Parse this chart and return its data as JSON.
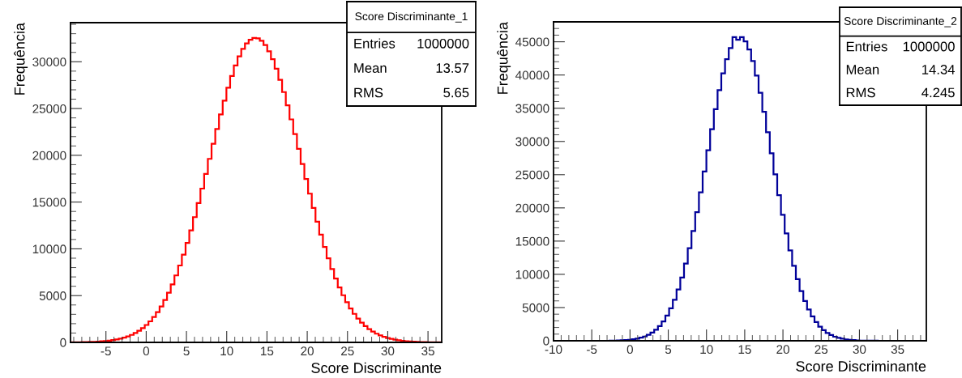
{
  "chart_data": [
    {
      "type": "histogram",
      "title": "Score Discriminante_1",
      "xlabel": "Score Discriminante",
      "ylabel": "Frequência",
      "color": "#ff0000",
      "annotations": [
        "Entries",
        "1000000",
        "Mean",
        "13.57",
        "RMS",
        "5.65"
      ],
      "bins": [
        -9.4,
        -8.939,
        -8.478,
        -8.017,
        -7.556,
        -7.095,
        -6.634,
        -6.173,
        -5.712,
        -5.251,
        -4.79,
        -4.329,
        -3.868,
        -3.407,
        -2.946,
        -2.485,
        -2.024,
        -1.563,
        -1.102,
        -0.641,
        -0.18,
        0.281,
        0.742,
        1.203,
        1.664,
        2.125,
        2.586,
        3.047,
        3.508,
        3.969,
        4.43,
        4.891,
        5.352,
        5.813,
        6.274,
        6.735,
        7.196,
        7.657,
        8.118,
        8.579,
        9.04,
        9.501,
        9.962,
        10.423,
        10.884,
        11.345,
        11.806,
        12.267,
        12.728,
        13.189,
        13.65,
        14.111,
        14.572,
        15.033,
        15.494,
        15.955,
        16.416,
        16.877,
        17.338,
        17.799,
        18.26,
        18.721,
        19.182,
        19.643,
        20.104,
        20.565,
        21.026,
        21.487,
        21.948,
        22.409,
        22.87,
        23.331,
        23.792,
        24.253,
        24.714,
        25.175,
        25.636,
        26.097,
        26.558,
        27.019,
        27.48,
        27.941,
        28.402,
        28.863,
        29.324,
        29.785,
        30.246,
        30.707,
        31.168,
        31.629,
        32.09,
        32.551,
        33.012,
        33.473,
        33.934,
        34.395,
        34.856,
        35.317,
        35.778,
        36.239,
        36.7
      ],
      "values": [
        10,
        10,
        20,
        30,
        40,
        50,
        60,
        80,
        110,
        150,
        190,
        250,
        310,
        400,
        510,
        640,
        800,
        1000,
        1240,
        1520,
        1860,
        2250,
        2710,
        3240,
        3840,
        4530,
        5320,
        6190,
        7160,
        8220,
        9380,
        10640,
        11980,
        13390,
        14890,
        16440,
        18010,
        19620,
        21230,
        22820,
        24360,
        25840,
        27220,
        28480,
        29610,
        30580,
        31370,
        31970,
        32360,
        32540,
        32500,
        32250,
        31790,
        31120,
        30270,
        29250,
        28070,
        26760,
        25340,
        23840,
        22280,
        20690,
        19070,
        17470,
        15900,
        14370,
        12910,
        11510,
        10200,
        8980,
        7850,
        6820,
        5880,
        5040,
        4290,
        3630,
        3050,
        2550,
        2110,
        1740,
        1420,
        1160,
        930,
        750,
        600,
        470,
        370,
        290,
        220,
        170,
        130,
        100,
        80,
        60,
        40,
        30,
        20,
        20,
        10,
        10
      ],
      "xlim": [
        -9.4,
        36.7
      ],
      "ylim": [
        0,
        34180
      ],
      "xticks": [
        -5,
        0,
        5,
        10,
        15,
        20,
        25,
        30,
        35
      ],
      "yticks": [
        0,
        5000,
        10000,
        15000,
        20000,
        25000,
        30000
      ],
      "grid": false,
      "legend": false
    },
    {
      "type": "histogram",
      "title": "Score Discriminante_2",
      "xlabel": "Score Discriminante",
      "ylabel": "Frequência",
      "color": "#000099",
      "annotations": [
        "Entries",
        "1000000",
        "Mean",
        "14.34",
        "RMS",
        "4.245"
      ],
      "bins": [
        -10,
        -9.5125,
        -9.025,
        -8.5375,
        -8.05,
        -7.5625,
        -7.075,
        -6.5875,
        -6.1,
        -5.6125,
        -5.125,
        -4.6375,
        -4.15,
        -3.6625,
        -3.175,
        -2.6875,
        -2.2,
        -1.7125,
        -1.225,
        -0.7375,
        -0.25,
        0.2375,
        0.725,
        1.2125,
        1.7,
        2.1875,
        2.675,
        3.1625,
        3.65,
        4.1375,
        4.625,
        5.1125,
        5.6,
        6.0875,
        6.575,
        7.0625,
        7.55,
        8.0375,
        8.525,
        9.0125,
        9.5,
        9.9875,
        10.475,
        10.9625,
        11.45,
        11.9375,
        12.425,
        12.9125,
        13.4,
        13.8875,
        14.375,
        14.8625,
        15.35,
        15.8375,
        16.325,
        16.8125,
        17.3,
        17.7875,
        18.275,
        18.7625,
        19.25,
        19.7375,
        20.225,
        20.7125,
        21.2,
        21.6875,
        22.175,
        22.6625,
        23.15,
        23.6375,
        24.125,
        24.6125,
        25.1,
        25.5875,
        26.075,
        26.5625,
        27.05,
        27.5375,
        28.025,
        28.5125,
        29.0,
        29.4875,
        29.975,
        30.4625,
        30.95,
        31.4375,
        31.925,
        32.4125,
        32.9,
        33.3875,
        33.875,
        34.3625,
        34.85,
        35.3375,
        35.825,
        36.3125,
        36.8,
        37.2875,
        37.775,
        38.2625,
        38.75
      ],
      "values": [
        0,
        0,
        0,
        0,
        0,
        0,
        0,
        0,
        0,
        0,
        0,
        0,
        0,
        10,
        10,
        20,
        30,
        40,
        70,
        100,
        150,
        220,
        320,
        460,
        640,
        900,
        1230,
        1660,
        2220,
        2920,
        3800,
        4880,
        6180,
        7730,
        9530,
        11610,
        13940,
        16530,
        19360,
        22350,
        25480,
        28670,
        31830,
        34870,
        37710,
        40240,
        42380,
        44050,
        45700,
        45300,
        45700,
        45060,
        43850,
        42110,
        39910,
        37330,
        34460,
        31390,
        28220,
        25040,
        21920,
        18950,
        16160,
        13600,
        11290,
        9270,
        7490,
        5980,
        4710,
        3660,
        2810,
        2130,
        1590,
        1180,
        860,
        610,
        440,
        310,
        210,
        140,
        100,
        60,
        40,
        30,
        20,
        10,
        10,
        0,
        0,
        0,
        0,
        0,
        0,
        0,
        0,
        0,
        0,
        0,
        0,
        0
      ],
      "xlim": [
        -10,
        38.75
      ],
      "ylim": [
        0,
        48000
      ],
      "xticks": [
        -10,
        -5,
        0,
        5,
        10,
        15,
        20,
        25,
        30,
        35
      ],
      "yticks": [
        0,
        5000,
        10000,
        15000,
        20000,
        25000,
        30000,
        35000,
        40000,
        45000
      ],
      "grid": false,
      "legend": false
    }
  ]
}
